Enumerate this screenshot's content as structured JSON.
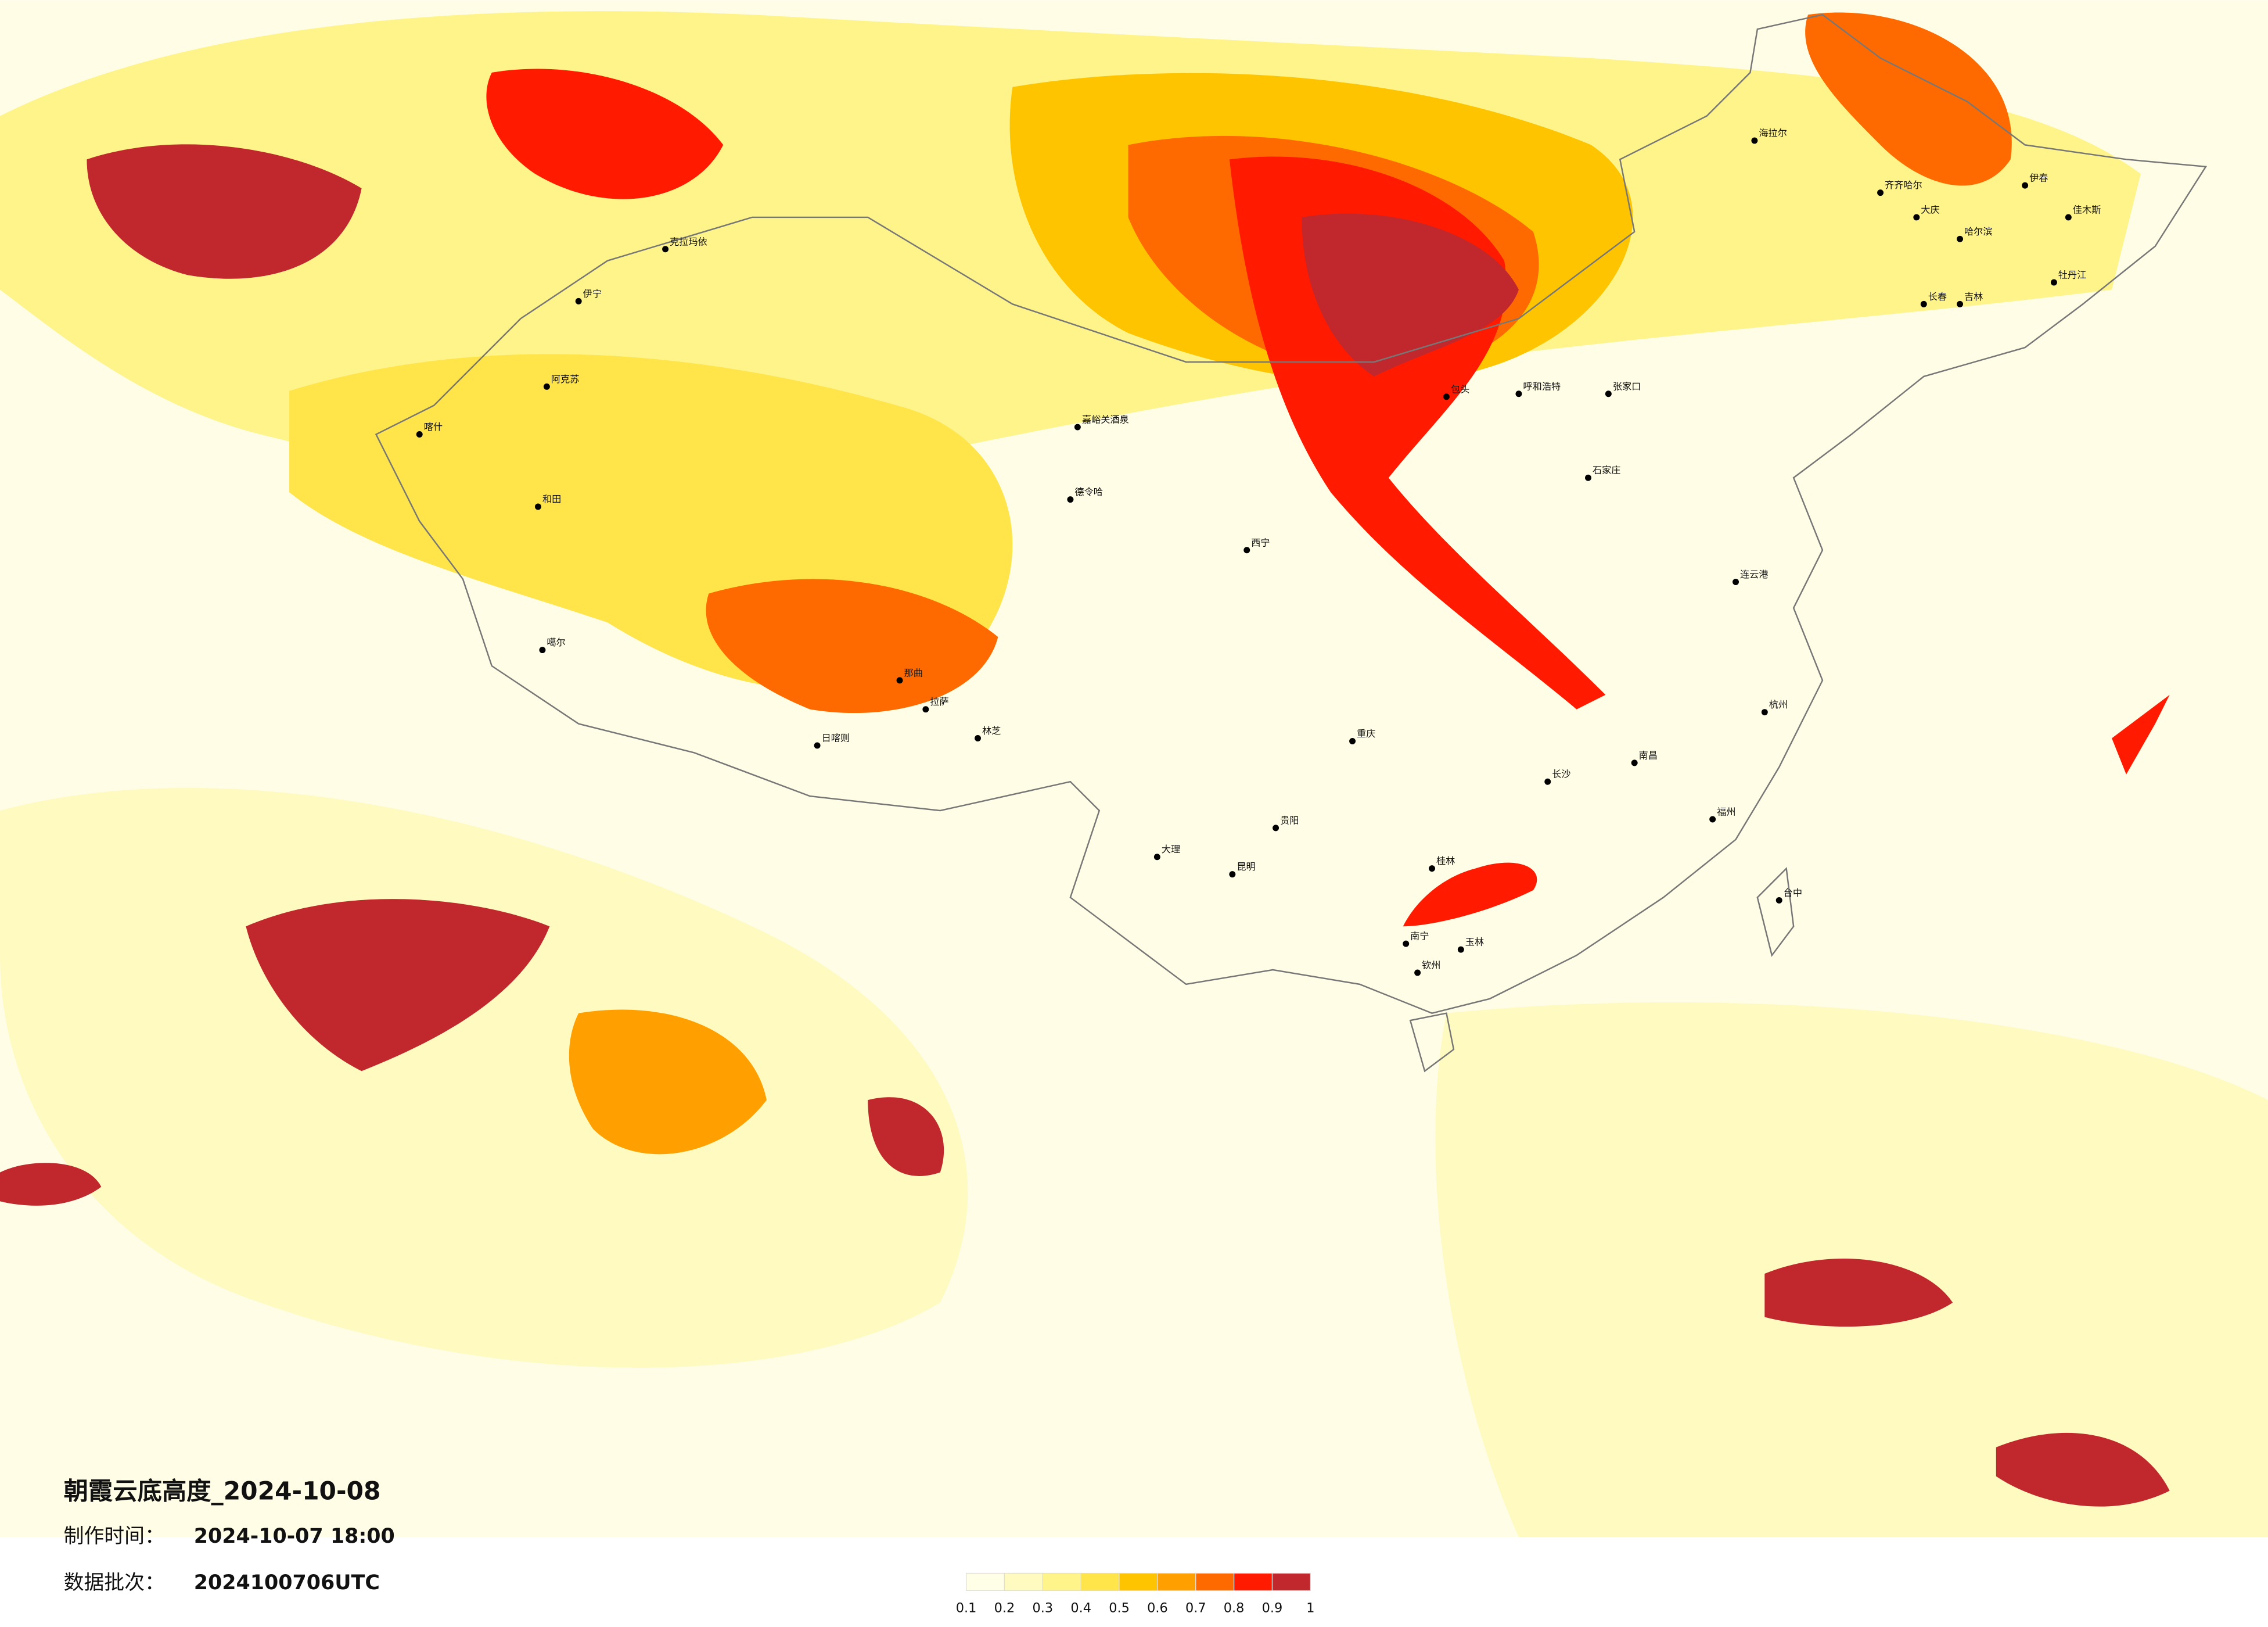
{
  "title": "朝霞云底高度_2024-10-08",
  "made_label": "制作时间：",
  "made_value": "2024-10-07 18:00",
  "batch_label": "数据批次：",
  "batch_value": "2024100706UTC",
  "legend": {
    "colors": [
      "#fffee6",
      "#fffac0",
      "#fff48a",
      "#ffe44a",
      "#ffc400",
      "#ffa000",
      "#ff6a00",
      "#ff1a00",
      "#c0282d"
    ],
    "ticks": [
      0.1,
      0.2,
      0.3,
      0.4,
      0.5,
      0.6,
      0.7,
      0.8,
      0.9,
      1
    ]
  },
  "cities": [
    "海拉尔",
    "齐齐哈尔",
    "大庆",
    "哈尔滨",
    "伊春",
    "佳木斯",
    "长春",
    "吉林",
    "牡丹江",
    "呼和浩特",
    "包头",
    "张家口",
    "石家庄",
    "克拉玛依",
    "伊宁",
    "阿克苏",
    "喀什",
    "和田",
    "嘉峪关酒泉",
    "德令哈",
    "噶尔",
    "日喀则",
    "那曲",
    "林芝",
    "昆明",
    "大理",
    "贵阳",
    "南宁",
    "长沙",
    "南昌",
    "杭州",
    "福州",
    "台中",
    "桂林",
    "玉林",
    "钦州",
    "连云港",
    "西宁",
    "拉萨",
    "重庆"
  ]
}
